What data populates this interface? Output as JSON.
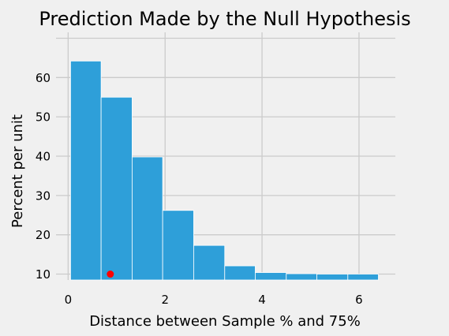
{
  "chart_data": {
    "type": "bar",
    "title": "Prediction Made by the Null Hypothesis",
    "xlabel": "Distance between Sample % and 75%",
    "ylabel": "Percent per unit",
    "xlim": [
      -0.25,
      6.75
    ],
    "ylim": [
      8.5,
      71.5
    ],
    "xticks": [
      0,
      2,
      4,
      6
    ],
    "yticks": [
      10,
      20,
      30,
      40,
      50,
      60
    ],
    "xtick_labels": [
      "0",
      "2",
      "4",
      "6"
    ],
    "ytick_labels": [
      "10",
      "20",
      "30",
      "40",
      "50",
      "60"
    ],
    "grid": true,
    "bins": [
      {
        "x0": 0.05,
        "x1": 0.68,
        "value": 64.2
      },
      {
        "x0": 0.68,
        "x1": 1.32,
        "value": 55.0
      },
      {
        "x0": 1.32,
        "x1": 1.95,
        "value": 39.8
      },
      {
        "x0": 1.95,
        "x1": 2.59,
        "value": 26.2
      },
      {
        "x0": 2.59,
        "x1": 3.23,
        "value": 17.3
      },
      {
        "x0": 3.23,
        "x1": 3.86,
        "value": 12.1
      },
      {
        "x0": 3.86,
        "x1": 4.5,
        "value": 10.4
      },
      {
        "x0": 4.5,
        "x1": 5.13,
        "value": 10.1
      },
      {
        "x0": 5.13,
        "x1": 5.77,
        "value": 10.0
      },
      {
        "x0": 5.77,
        "x1": 6.4,
        "value": 10.0
      }
    ],
    "marker": {
      "x": 0.87,
      "y": 10,
      "color": "#ff0000"
    },
    "colors": {
      "bar": "#2e9fd9",
      "background": "#f0f0f0",
      "grid": "#cbcbcb"
    }
  }
}
